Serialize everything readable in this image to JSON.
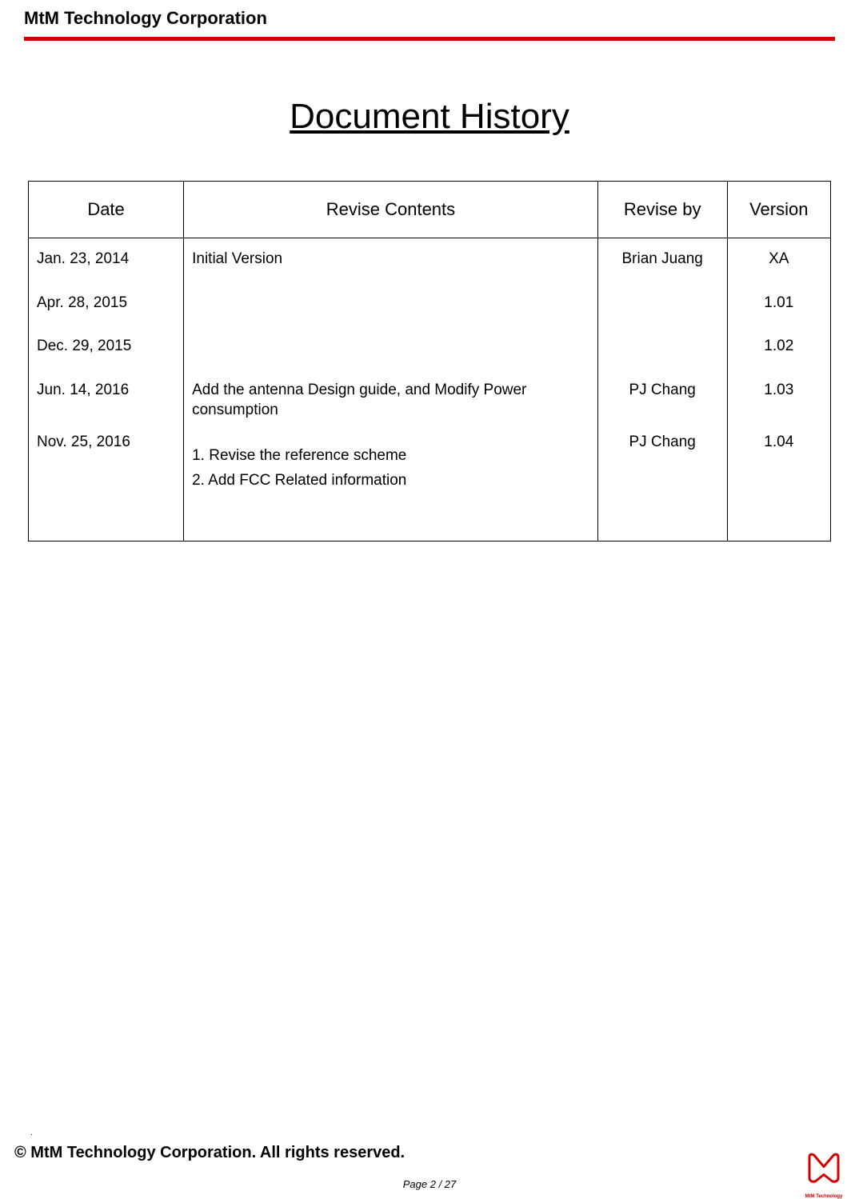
{
  "header": {
    "company": "MtM Technology Corporation",
    "rule_color": "#d00000"
  },
  "title": "Document History",
  "table": {
    "columns": [
      "Date",
      "Revise Contents",
      "Revise by",
      "Version"
    ],
    "rows": [
      {
        "date": "Jan. 23, 2014",
        "contents": "Initial Version",
        "by": "Brian Juang",
        "version": "XA"
      },
      {
        "date": "Apr. 28, 2015",
        "contents": "",
        "by": "",
        "version": "1.01"
      },
      {
        "date": "Dec. 29, 2015",
        "contents": "",
        "by": "",
        "version": "1.02"
      },
      {
        "date": "Jun. 14, 2016",
        "contents": "Add the antenna Design guide, and Modify Power consumption",
        "by": "PJ Chang",
        "version": "1.03"
      },
      {
        "date": "Nov. 25, 2016",
        "contents": "1. Revise the reference scheme\n2. Add FCC Related information",
        "by": "PJ Chang",
        "version": "1.04"
      }
    ]
  },
  "footer": {
    "dot": ".",
    "copyright": "© MtM Technology Corporation. All rights reserved.",
    "page": "Page 2 / 27",
    "logo_caption": "MtM Technology",
    "logo_color": "#d00000"
  }
}
